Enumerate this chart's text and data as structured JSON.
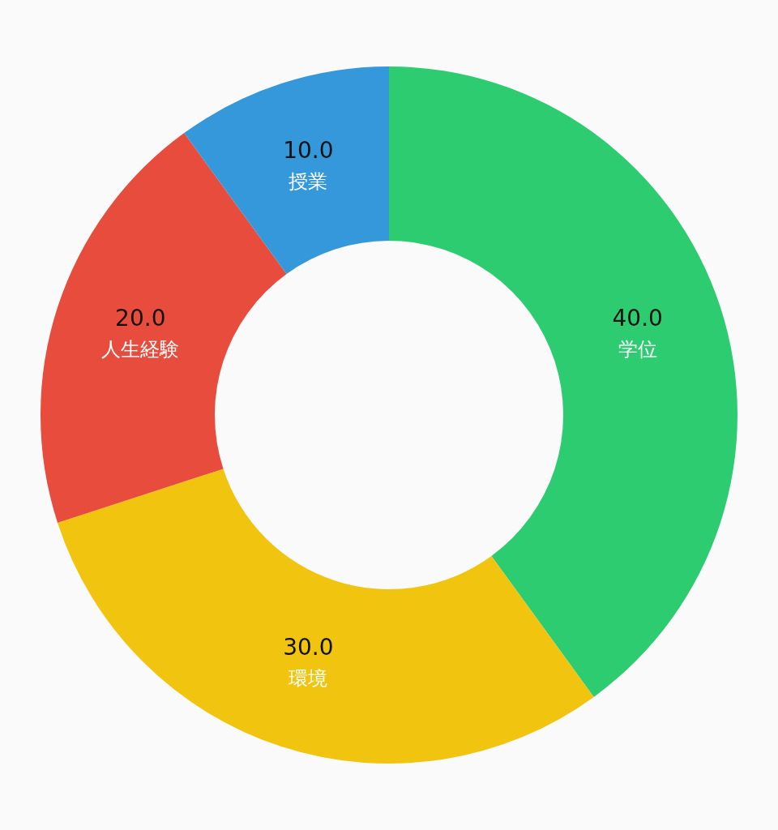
{
  "chart_data": {
    "type": "donut",
    "categories": [
      "学位",
      "環境",
      "人生経験",
      "授業"
    ],
    "values": [
      40,
      30,
      20,
      10
    ],
    "value_labels": [
      "40.0",
      "30.0",
      "20.0",
      "10.0"
    ],
    "colors": [
      "#2ecc71",
      "#f1c40f",
      "#e74c3c",
      "#3498db"
    ]
  }
}
